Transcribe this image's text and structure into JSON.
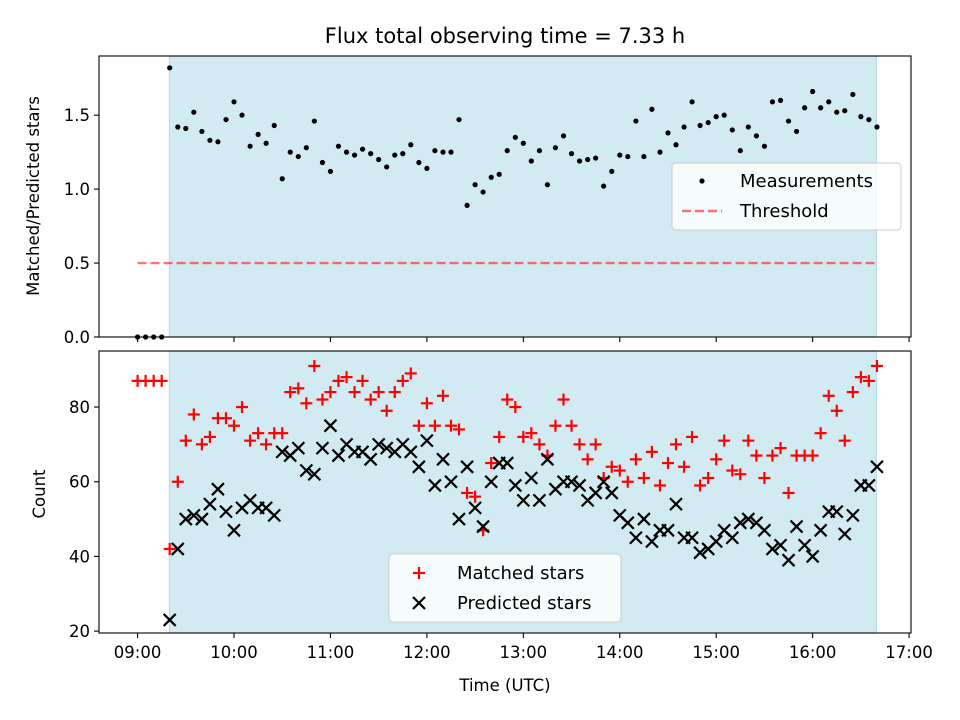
{
  "chart_data": {
    "title": "Flux total observing time = 7.33 h",
    "xlabel": "Time (UTC)",
    "x_unit": "hours UTC",
    "xlim": [
      8.6,
      17.02
    ],
    "xticks": [
      {
        "v": 9,
        "label": "09:00"
      },
      {
        "v": 10,
        "label": "10:00"
      },
      {
        "v": 11,
        "label": "11:00"
      },
      {
        "v": 12,
        "label": "12:00"
      },
      {
        "v": 13,
        "label": "13:00"
      },
      {
        "v": 14,
        "label": "14:00"
      },
      {
        "v": 15,
        "label": "15:00"
      },
      {
        "v": 16,
        "label": "16:00"
      },
      {
        "v": 17,
        "label": "17:00"
      }
    ],
    "observing_span": [
      9.33,
      16.66
    ],
    "colors": {
      "span": "#add8e6",
      "measurements": "#000000",
      "threshold": "#ff0000",
      "matched": "#ff0000",
      "predicted": "#000000"
    },
    "top": {
      "type": "scatter",
      "ylabel": "Matched/Predicted stars",
      "ylim": [
        0,
        1.9
      ],
      "yticks": [
        {
          "v": 0.0,
          "label": "0.0"
        },
        {
          "v": 0.5,
          "label": "0.5"
        },
        {
          "v": 1.0,
          "label": "1.0"
        },
        {
          "v": 1.5,
          "label": "1.5"
        }
      ],
      "threshold": {
        "value": 0.5,
        "x_range": [
          9.0,
          16.66
        ]
      },
      "legend": {
        "position": "center-right",
        "measurements": "Measurements",
        "threshold": "Threshold"
      },
      "measurements": [
        [
          9.0,
          0.0
        ],
        [
          9.083,
          0.0
        ],
        [
          9.167,
          0.0
        ],
        [
          9.25,
          0.0
        ],
        [
          9.333,
          1.82
        ],
        [
          9.417,
          1.42
        ],
        [
          9.5,
          1.41
        ],
        [
          9.583,
          1.52
        ],
        [
          9.667,
          1.39
        ],
        [
          9.75,
          1.33
        ],
        [
          9.833,
          1.32
        ],
        [
          9.917,
          1.47
        ],
        [
          10.0,
          1.59
        ],
        [
          10.083,
          1.5
        ],
        [
          10.167,
          1.29
        ],
        [
          10.25,
          1.37
        ],
        [
          10.333,
          1.31
        ],
        [
          10.417,
          1.43
        ],
        [
          10.5,
          1.07
        ],
        [
          10.583,
          1.25
        ],
        [
          10.667,
          1.22
        ],
        [
          10.75,
          1.28
        ],
        [
          10.833,
          1.46
        ],
        [
          10.917,
          1.18
        ],
        [
          11.0,
          1.12
        ],
        [
          11.083,
          1.29
        ],
        [
          11.167,
          1.25
        ],
        [
          11.25,
          1.23
        ],
        [
          11.333,
          1.27
        ],
        [
          11.417,
          1.24
        ],
        [
          11.5,
          1.2
        ],
        [
          11.583,
          1.15
        ],
        [
          11.667,
          1.23
        ],
        [
          11.75,
          1.24
        ],
        [
          11.833,
          1.3
        ],
        [
          11.917,
          1.18
        ],
        [
          12.0,
          1.14
        ],
        [
          12.083,
          1.26
        ],
        [
          12.167,
          1.25
        ],
        [
          12.25,
          1.25
        ],
        [
          12.333,
          1.47
        ],
        [
          12.417,
          0.89
        ],
        [
          12.5,
          1.03
        ],
        [
          12.583,
          0.98
        ],
        [
          12.667,
          1.08
        ],
        [
          12.75,
          1.1
        ],
        [
          12.833,
          1.26
        ],
        [
          12.917,
          1.35
        ],
        [
          13.0,
          1.31
        ],
        [
          13.083,
          1.19
        ],
        [
          13.167,
          1.26
        ],
        [
          13.25,
          1.03
        ],
        [
          13.333,
          1.28
        ],
        [
          13.417,
          1.36
        ],
        [
          13.5,
          1.24
        ],
        [
          13.583,
          1.19
        ],
        [
          13.667,
          1.2
        ],
        [
          13.75,
          1.21
        ],
        [
          13.833,
          1.02
        ],
        [
          13.917,
          1.12
        ],
        [
          14.0,
          1.23
        ],
        [
          14.083,
          1.22
        ],
        [
          14.167,
          1.46
        ],
        [
          14.25,
          1.22
        ],
        [
          14.333,
          1.54
        ],
        [
          14.417,
          1.25
        ],
        [
          14.5,
          1.38
        ],
        [
          14.583,
          1.3
        ],
        [
          14.667,
          1.42
        ],
        [
          14.75,
          1.59
        ],
        [
          14.833,
          1.43
        ],
        [
          14.917,
          1.45
        ],
        [
          15.0,
          1.49
        ],
        [
          15.083,
          1.5
        ],
        [
          15.167,
          1.4
        ],
        [
          15.25,
          1.26
        ],
        [
          15.333,
          1.42
        ],
        [
          15.417,
          1.36
        ],
        [
          15.5,
          1.29
        ],
        [
          15.583,
          1.59
        ],
        [
          15.667,
          1.6
        ],
        [
          15.75,
          1.46
        ],
        [
          15.833,
          1.39
        ],
        [
          15.917,
          1.55
        ],
        [
          16.0,
          1.66
        ],
        [
          16.083,
          1.55
        ],
        [
          16.167,
          1.59
        ],
        [
          16.25,
          1.52
        ],
        [
          16.333,
          1.53
        ],
        [
          16.417,
          1.64
        ],
        [
          16.5,
          1.49
        ],
        [
          16.583,
          1.47
        ],
        [
          16.667,
          1.42
        ]
      ]
    },
    "bottom": {
      "type": "scatter",
      "ylabel": "Count",
      "ylim": [
        19.5,
        95
      ],
      "yticks": [
        {
          "v": 20,
          "label": "20"
        },
        {
          "v": 40,
          "label": "40"
        },
        {
          "v": 60,
          "label": "60"
        },
        {
          "v": 80,
          "label": "80"
        }
      ],
      "legend": {
        "position": "lower-center",
        "matched": "Matched stars",
        "predicted": "Predicted stars"
      },
      "matched": [
        [
          9.0,
          87
        ],
        [
          9.083,
          87
        ],
        [
          9.167,
          87
        ],
        [
          9.25,
          87
        ],
        [
          9.333,
          42
        ],
        [
          9.417,
          60
        ],
        [
          9.5,
          71
        ],
        [
          9.583,
          78
        ],
        [
          9.667,
          70
        ],
        [
          9.75,
          72
        ],
        [
          9.833,
          77
        ],
        [
          9.917,
          77
        ],
        [
          10.0,
          75
        ],
        [
          10.083,
          80
        ],
        [
          10.167,
          71
        ],
        [
          10.25,
          73
        ],
        [
          10.333,
          70
        ],
        [
          10.417,
          73
        ],
        [
          10.5,
          73
        ],
        [
          10.583,
          84
        ],
        [
          10.667,
          85
        ],
        [
          10.75,
          81
        ],
        [
          10.833,
          91
        ],
        [
          10.917,
          82
        ],
        [
          11.0,
          84
        ],
        [
          11.083,
          87
        ],
        [
          11.167,
          88
        ],
        [
          11.25,
          84
        ],
        [
          11.333,
          87
        ],
        [
          11.417,
          82
        ],
        [
          11.5,
          84
        ],
        [
          11.583,
          79
        ],
        [
          11.667,
          84
        ],
        [
          11.75,
          87
        ],
        [
          11.833,
          89
        ],
        [
          11.917,
          75
        ],
        [
          12.0,
          81
        ],
        [
          12.083,
          75
        ],
        [
          12.167,
          83
        ],
        [
          12.25,
          75
        ],
        [
          12.333,
          74
        ],
        [
          12.417,
          57
        ],
        [
          12.5,
          56
        ],
        [
          12.583,
          47
        ],
        [
          12.667,
          65
        ],
        [
          12.75,
          72
        ],
        [
          12.833,
          82
        ],
        [
          12.917,
          80
        ],
        [
          13.0,
          72
        ],
        [
          13.083,
          73
        ],
        [
          13.167,
          70
        ],
        [
          13.25,
          67
        ],
        [
          13.333,
          75
        ],
        [
          13.417,
          82
        ],
        [
          13.5,
          75
        ],
        [
          13.583,
          70
        ],
        [
          13.667,
          66
        ],
        [
          13.75,
          70
        ],
        [
          13.833,
          61
        ],
        [
          13.917,
          64
        ],
        [
          14.0,
          63
        ],
        [
          14.083,
          60
        ],
        [
          14.167,
          66
        ],
        [
          14.25,
          61
        ],
        [
          14.333,
          68
        ],
        [
          14.417,
          59
        ],
        [
          14.5,
          65
        ],
        [
          14.583,
          70
        ],
        [
          14.667,
          64
        ],
        [
          14.75,
          72
        ],
        [
          14.833,
          59
        ],
        [
          14.917,
          61
        ],
        [
          15.0,
          66
        ],
        [
          15.083,
          71
        ],
        [
          15.167,
          63
        ],
        [
          15.25,
          62
        ],
        [
          15.333,
          71
        ],
        [
          15.417,
          67
        ],
        [
          15.5,
          61
        ],
        [
          15.583,
          67
        ],
        [
          15.667,
          69
        ],
        [
          15.75,
          57
        ],
        [
          15.833,
          67
        ],
        [
          15.917,
          67
        ],
        [
          16.0,
          67
        ],
        [
          16.083,
          73
        ],
        [
          16.167,
          83
        ],
        [
          16.25,
          79
        ],
        [
          16.333,
          71
        ],
        [
          16.417,
          84
        ],
        [
          16.5,
          88
        ],
        [
          16.583,
          87
        ],
        [
          16.667,
          91
        ]
      ],
      "predicted": [
        [
          9.333,
          23
        ],
        [
          9.417,
          42
        ],
        [
          9.5,
          50
        ],
        [
          9.583,
          51
        ],
        [
          9.667,
          50
        ],
        [
          9.75,
          54
        ],
        [
          9.833,
          58
        ],
        [
          9.917,
          52
        ],
        [
          10.0,
          47
        ],
        [
          10.083,
          53
        ],
        [
          10.167,
          55
        ],
        [
          10.25,
          53
        ],
        [
          10.333,
          53
        ],
        [
          10.417,
          51
        ],
        [
          10.5,
          68
        ],
        [
          10.583,
          67
        ],
        [
          10.667,
          69
        ],
        [
          10.75,
          63
        ],
        [
          10.833,
          62
        ],
        [
          10.917,
          69
        ],
        [
          11.0,
          75
        ],
        [
          11.083,
          67
        ],
        [
          11.167,
          70
        ],
        [
          11.25,
          68
        ],
        [
          11.333,
          68
        ],
        [
          11.417,
          66
        ],
        [
          11.5,
          70
        ],
        [
          11.583,
          69
        ],
        [
          11.667,
          68
        ],
        [
          11.75,
          70
        ],
        [
          11.833,
          68
        ],
        [
          11.917,
          64
        ],
        [
          12.0,
          71
        ],
        [
          12.083,
          59
        ],
        [
          12.167,
          66
        ],
        [
          12.25,
          60
        ],
        [
          12.333,
          50
        ],
        [
          12.417,
          64
        ],
        [
          12.5,
          53
        ],
        [
          12.583,
          48
        ],
        [
          12.667,
          60
        ],
        [
          12.75,
          65
        ],
        [
          12.833,
          65
        ],
        [
          12.917,
          59
        ],
        [
          13.0,
          55
        ],
        [
          13.083,
          61
        ],
        [
          13.167,
          55
        ],
        [
          13.25,
          66
        ],
        [
          13.333,
          58
        ],
        [
          13.417,
          60
        ],
        [
          13.5,
          60
        ],
        [
          13.583,
          59
        ],
        [
          13.667,
          55
        ],
        [
          13.75,
          57
        ],
        [
          13.833,
          60
        ],
        [
          13.917,
          57
        ],
        [
          14.0,
          51
        ],
        [
          14.083,
          49
        ],
        [
          14.167,
          45
        ],
        [
          14.25,
          50
        ],
        [
          14.333,
          44
        ],
        [
          14.417,
          47
        ],
        [
          14.5,
          47
        ],
        [
          14.583,
          54
        ],
        [
          14.667,
          45
        ],
        [
          14.75,
          45
        ],
        [
          14.833,
          41
        ],
        [
          14.917,
          42
        ],
        [
          15.0,
          44
        ],
        [
          15.083,
          47
        ],
        [
          15.167,
          45
        ],
        [
          15.25,
          49
        ],
        [
          15.333,
          50
        ],
        [
          15.417,
          49
        ],
        [
          15.5,
          47
        ],
        [
          15.583,
          42
        ],
        [
          15.667,
          43
        ],
        [
          15.75,
          39
        ],
        [
          15.833,
          48
        ],
        [
          15.917,
          43
        ],
        [
          16.0,
          40
        ],
        [
          16.083,
          47
        ],
        [
          16.167,
          52
        ],
        [
          16.25,
          52
        ],
        [
          16.333,
          46
        ],
        [
          16.417,
          51
        ],
        [
          16.5,
          59
        ],
        [
          16.583,
          59
        ],
        [
          16.667,
          64
        ]
      ]
    }
  }
}
